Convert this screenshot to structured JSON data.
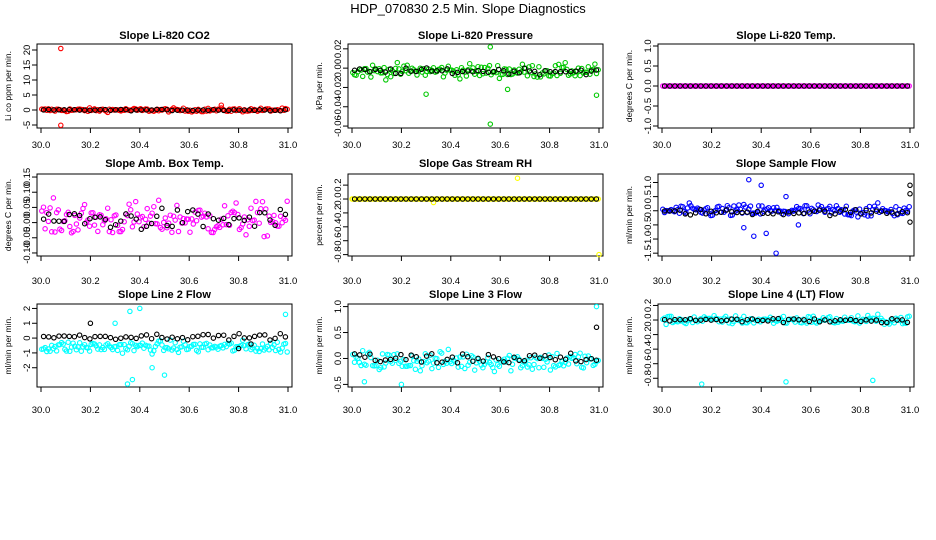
{
  "title": "HDP_070830  2.5 Min. Slope Diagnostics",
  "x_axis": {
    "range": [
      30.0,
      31.0
    ],
    "ticks": [
      30.0,
      30.2,
      30.4,
      30.6,
      30.8,
      31.0
    ],
    "tick_labels": [
      "30.0",
      "30.2",
      "30.4",
      "30.6",
      "30.8",
      "31.0"
    ]
  },
  "chart_data": [
    {
      "type": "scatter",
      "title": "Slope Li-820 CO2",
      "ylabel": "Li co ppm per min.",
      "ylim": [
        -6,
        22
      ],
      "yticks": [
        -5,
        0,
        5,
        10,
        15,
        20
      ],
      "ytick_labels": [
        "-5",
        "0",
        "5",
        "10",
        "15",
        "20"
      ],
      "color": "#ff0000",
      "series": [
        {
          "values": {
            "kind": "band",
            "center": 0,
            "spread": 0.6
          },
          "outliers": [
            [
              30.08,
              20.5
            ],
            [
              30.08,
              -5.1
            ],
            [
              30.73,
              1.6
            ]
          ]
        },
        {
          "values": {
            "kind": "band",
            "center": 0,
            "spread": 0.2
          }
        }
      ]
    },
    {
      "type": "scatter",
      "title": "Slope Li-820 Pressure",
      "ylabel": "kPa per min.",
      "ylim": [
        -0.062,
        0.025
      ],
      "yticks": [
        -0.06,
        -0.04,
        -0.02,
        0.0,
        0.02
      ],
      "ytick_labels": [
        "-0.06",
        "-0.04",
        "-0.02",
        "0.00",
        "0.02"
      ],
      "color": "#00c800",
      "series": [
        {
          "values": {
            "kind": "band",
            "center": -0.003,
            "spread": 0.007
          },
          "outliers": [
            [
              30.56,
              0.022
            ],
            [
              30.56,
              -0.058
            ],
            [
              30.3,
              -0.027
            ],
            [
              30.63,
              -0.022
            ],
            [
              30.99,
              -0.028
            ]
          ]
        },
        {
          "values": {
            "kind": "band",
            "center": -0.003,
            "spread": 0.003
          }
        }
      ]
    },
    {
      "type": "scatter",
      "title": "Slope Li-820 Temp.",
      "ylabel": "degrees C per min.",
      "ylim": [
        -1.05,
        1.05
      ],
      "yticks": [
        -1.0,
        -0.5,
        0.0,
        0.5,
        1.0
      ],
      "ytick_labels": [
        "-1.0",
        "-0.5",
        "0.0",
        "0.5",
        "1.0"
      ],
      "color": "#ff00ff",
      "series": [
        {
          "values": {
            "kind": "line",
            "center": 0
          }
        },
        {
          "values": {
            "kind": "line",
            "center": 0
          }
        }
      ]
    },
    {
      "type": "scatter",
      "title": "Slope Amb. Box Temp.",
      "ylabel": "degrees C per min.",
      "ylim": [
        -0.11,
        0.16
      ],
      "yticks": [
        -0.1,
        -0.05,
        0.0,
        0.05,
        0.1,
        0.15
      ],
      "ytick_labels": [
        "-0.10",
        "-0.05",
        "0.00",
        "0.05",
        "0.10",
        "0.15"
      ],
      "color": "#ff00ff",
      "series": [
        {
          "values": {
            "kind": "band",
            "center": 0.01,
            "spread": 0.055
          }
        },
        {
          "values": {
            "kind": "band",
            "center": 0.01,
            "spread": 0.035
          }
        }
      ]
    },
    {
      "type": "scatter",
      "title": "Slope Gas Stream RH",
      "ylabel": "percent per min.",
      "ylim": [
        -0.82,
        0.36
      ],
      "yticks": [
        -0.8,
        -0.6,
        -0.4,
        -0.2,
        0.0,
        0.2
      ],
      "ytick_labels": [
        "-0.8",
        "-0.6",
        "-0.4",
        "-0.2",
        "0.0",
        "0.2"
      ],
      "color": "#ffff00",
      "series": [
        {
          "values": {
            "kind": "line",
            "center": 0
          },
          "outliers": [
            [
              30.67,
              0.3
            ],
            [
              30.33,
              -0.05
            ],
            [
              31.0,
              -0.8
            ],
            [
              30.0,
              0.0
            ]
          ]
        },
        {
          "values": {
            "kind": "line",
            "center": 0
          }
        }
      ]
    },
    {
      "type": "scatter",
      "title": "Slope Sample Flow",
      "ylabel": "ml/min per min.",
      "ylim": [
        -1.6,
        1.3
      ],
      "yticks": [
        -1.5,
        -1.0,
        -0.5,
        0.0,
        0.5,
        1.0
      ],
      "ytick_labels": [
        "-1.5",
        "-1.0",
        "-0.5",
        "0.0",
        "0.5",
        "1.0"
      ],
      "color": "#0000ff",
      "series": [
        {
          "values": {
            "kind": "band",
            "center": 0,
            "spread": 0.22
          },
          "outliers": [
            [
              30.35,
              1.1
            ],
            [
              30.4,
              0.9
            ],
            [
              30.37,
              -0.9
            ],
            [
              30.42,
              -0.8
            ],
            [
              30.46,
              -1.5
            ],
            [
              30.33,
              -0.6
            ],
            [
              30.5,
              0.5
            ],
            [
              30.55,
              -0.5
            ]
          ]
        },
        {
          "values": {
            "kind": "band",
            "center": -0.05,
            "spread": 0.1
          },
          "outliers": [
            [
              31.0,
              0.9
            ],
            [
              31.0,
              0.6
            ],
            [
              31.0,
              -0.4
            ]
          ]
        }
      ]
    },
    {
      "type": "scatter",
      "title": "Slope Line 2 Flow",
      "ylabel": "ml/min per min.",
      "ylim": [
        -3.3,
        2.3
      ],
      "yticks": [
        -2,
        -1,
        0,
        1,
        2
      ],
      "ytick_labels": [
        "-2",
        "-1",
        "0",
        "1",
        "2"
      ],
      "color": "#00ffff",
      "series": [
        {
          "values": {
            "kind": "band",
            "center": -0.6,
            "spread": 0.4
          },
          "outliers": [
            [
              30.4,
              2.0
            ],
            [
              30.36,
              1.8
            ],
            [
              30.37,
              -2.8
            ],
            [
              30.35,
              -3.1
            ],
            [
              30.5,
              -2.5
            ],
            [
              30.45,
              -2.0
            ],
            [
              30.99,
              1.6
            ],
            [
              30.3,
              1.0
            ]
          ]
        },
        {
          "values": {
            "kind": "band",
            "center": 0.1,
            "spread": 0.18
          },
          "outliers": [
            [
              30.2,
              1.0
            ],
            [
              30.8,
              -0.7
            ],
            [
              30.85,
              -0.4
            ]
          ]
        }
      ]
    },
    {
      "type": "scatter",
      "title": "Slope Line 3 Flow",
      "ylabel": "ml/min per min.",
      "ylim": [
        -0.55,
        1.05
      ],
      "yticks": [
        -0.5,
        0.0,
        0.5,
        1.0
      ],
      "ytick_labels": [
        "-0.5",
        "0.0",
        "0.5",
        "1.0"
      ],
      "color": "#00ffff",
      "series": [
        {
          "values": {
            "kind": "band",
            "center": -0.05,
            "spread": 0.2
          },
          "outliers": [
            [
              30.99,
              1.0
            ],
            [
              30.2,
              -0.5
            ],
            [
              30.05,
              -0.45
            ]
          ]
        },
        {
          "values": {
            "kind": "band",
            "center": 0.0,
            "spread": 0.12
          },
          "outliers": [
            [
              30.99,
              0.6
            ]
          ]
        }
      ]
    },
    {
      "type": "scatter",
      "title": "Slope Line 4 (LT) Flow",
      "ylabel": "ml/min per min.",
      "ylim": [
        -0.92,
        0.22
      ],
      "yticks": [
        -0.8,
        -0.6,
        -0.4,
        -0.2,
        0.0,
        0.2
      ],
      "ytick_labels": [
        "-0.8",
        "-0.6",
        "-0.4",
        "-0.2",
        "0.0",
        "0.2"
      ],
      "color": "#00ffff",
      "series": [
        {
          "values": {
            "kind": "band",
            "center": 0.0,
            "spread": 0.06
          },
          "outliers": [
            [
              30.16,
              -0.88
            ],
            [
              30.5,
              -0.85
            ],
            [
              30.85,
              -0.83
            ]
          ]
        },
        {
          "values": {
            "kind": "band",
            "center": 0.0,
            "spread": 0.04
          }
        }
      ]
    }
  ]
}
